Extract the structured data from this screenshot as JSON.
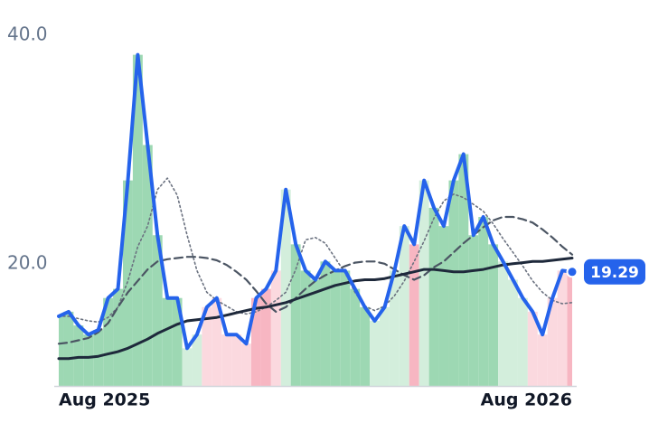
{
  "chart_data": {
    "type": "line",
    "categories": [
      "Aug 2025",
      null,
      null,
      null,
      null,
      null,
      null,
      null,
      null,
      null,
      null,
      null,
      null,
      null,
      null,
      null,
      null,
      null,
      null,
      null,
      null,
      null,
      null,
      null,
      null,
      null,
      null,
      null,
      null,
      null,
      null,
      null,
      null,
      null,
      null,
      null,
      null,
      null,
      null,
      null,
      null,
      null,
      null,
      null,
      null,
      null,
      null,
      null,
      null,
      null,
      null,
      null,
      "Aug 2026"
    ],
    "ylim": [
      9.3,
      43.1
    ],
    "yticks": [
      {
        "value": 20,
        "label": "20.0"
      },
      {
        "value": 40,
        "label": "40.0"
      }
    ],
    "grid": false,
    "bar_colors": [
      "#9dd8b3",
      "#9dd8b3",
      "#9dd8b3",
      "#9dd8b3",
      "#9dd8b3",
      "#9dd8b3",
      "#9dd8b3",
      "#9dd8b3",
      "#9dd8b3",
      "#9dd8b3",
      "#9dd8b3",
      "#9dd8b3",
      "#9dd8b3",
      "#d3eedc",
      "#d3eedc",
      "#fbd9df",
      "#fbd9df",
      "#fbd9df",
      "#fbd9df",
      "#fbd9df",
      "#f7b6c2",
      "#f7b6c2",
      "#fbd9df",
      "#d3eedc",
      "#9dd8b3",
      "#9dd8b3",
      "#9dd8b3",
      "#9dd8b3",
      "#9dd8b3",
      "#9dd8b3",
      "#9dd8b3",
      "#9dd8b3",
      "#d3eedc",
      "#d3eedc",
      "#d3eedc",
      "#d3eedc",
      "#f7b6c2",
      "#d3eedc",
      "#9dd8b3",
      "#9dd8b3",
      "#9dd8b3",
      "#9dd8b3",
      "#9dd8b3",
      "#9dd8b3",
      "#9dd8b3",
      "#d3eedc",
      "#d3eedc",
      "#d3eedc",
      "#fbd9df",
      "#fbd9df",
      "#fbd9df",
      "#fbd9df",
      "#f7b6c2"
    ],
    "series": [
      {
        "color": "#2563eb",
        "values": [
          15.4,
          15.8,
          14.6,
          13.8,
          14.2,
          17.0,
          17.8,
          27.3,
          38.3,
          30.4,
          22.5,
          17.0,
          17.0,
          12.6,
          13.8,
          16.2,
          17.0,
          13.8,
          13.8,
          13.0,
          17.0,
          17.8,
          19.4,
          26.5,
          21.7,
          19.4,
          18.6,
          20.2,
          19.4,
          19.4,
          17.8,
          16.2,
          15.0,
          16.2,
          19.4,
          23.3,
          21.7,
          27.3,
          24.9,
          23.3,
          27.3,
          29.6,
          22.5,
          24.1,
          21.7,
          20.2,
          18.6,
          17.0,
          15.8,
          13.8,
          17.0,
          19.4,
          19.29
        ]
      },
      {
        "color": "#1e293b",
        "values": [
          11.7,
          11.7,
          11.8,
          11.8,
          11.9,
          12.1,
          12.3,
          12.6,
          13.0,
          13.4,
          13.9,
          14.3,
          14.7,
          15.0,
          15.1,
          15.2,
          15.3,
          15.5,
          15.7,
          15.9,
          16.1,
          16.2,
          16.4,
          16.6,
          16.9,
          17.2,
          17.5,
          17.8,
          18.1,
          18.3,
          18.5,
          18.6,
          18.6,
          18.7,
          18.9,
          19.1,
          19.3,
          19.5,
          19.5,
          19.4,
          19.3,
          19.3,
          19.4,
          19.5,
          19.7,
          19.9,
          20.0,
          20.1,
          20.2,
          20.2,
          20.3,
          20.4,
          20.5
        ]
      },
      {
        "color": "#4b5563",
        "values": [
          13.0,
          13.1,
          13.3,
          13.5,
          14.0,
          14.8,
          16.2,
          17.5,
          18.5,
          19.5,
          20.2,
          20.4,
          20.5,
          20.6,
          20.6,
          20.5,
          20.3,
          19.9,
          19.3,
          18.6,
          17.6,
          16.5,
          15.8,
          16.2,
          17.0,
          17.8,
          18.5,
          19.0,
          19.4,
          19.8,
          20.1,
          20.2,
          20.2,
          20.0,
          19.5,
          19.0,
          18.6,
          19.0,
          19.7,
          20.2,
          21.0,
          21.8,
          22.5,
          23.2,
          23.8,
          24.1,
          24.1,
          23.9,
          23.6,
          23.0,
          22.3,
          21.5,
          20.8
        ]
      },
      {
        "color": "#6b7280",
        "values": [
          15.4,
          15.4,
          15.2,
          15.0,
          14.9,
          15.3,
          16.2,
          18.5,
          21.5,
          23.3,
          26.5,
          27.5,
          26.0,
          22.5,
          19.4,
          17.5,
          16.8,
          16.3,
          15.8,
          15.6,
          15.8,
          16.2,
          16.8,
          17.5,
          19.5,
          22.1,
          22.3,
          21.8,
          20.5,
          19.2,
          17.5,
          16.3,
          15.9,
          16.3,
          17.2,
          18.5,
          20.2,
          22.0,
          24.0,
          25.5,
          26.1,
          25.8,
          25.2,
          24.6,
          23.5,
          22.2,
          21.0,
          19.8,
          18.5,
          17.5,
          16.8,
          16.5,
          16.6
        ]
      }
    ]
  }
}
